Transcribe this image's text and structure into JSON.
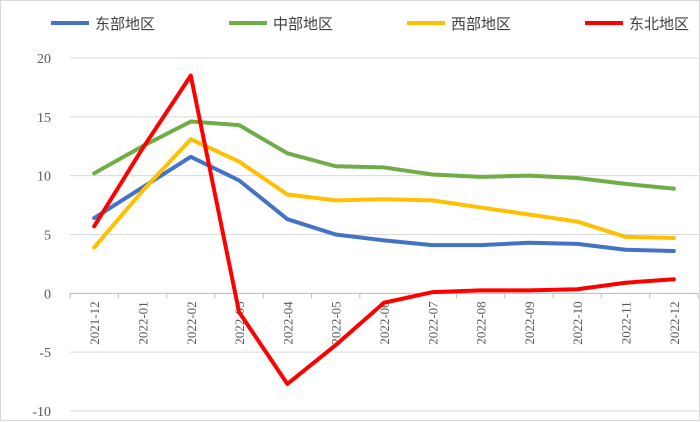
{
  "chart_data": {
    "type": "line",
    "title": "",
    "xlabel": "",
    "ylabel": "",
    "ylim": [
      -10,
      20
    ],
    "yticks": [
      -10,
      -5,
      0,
      5,
      10,
      15,
      20
    ],
    "grid": true,
    "legend_placement": "top",
    "categories": [
      "2021-12",
      "2022-01",
      "2022-02",
      "2022-03",
      "2022-04",
      "2022-05",
      "2022-06",
      "2022-07",
      "2022-08",
      "2022-09",
      "2022-10",
      "2022-11",
      "2022-12"
    ],
    "series": [
      {
        "name": "东部地区",
        "color": "#4472C4",
        "values": [
          6.4,
          9.0,
          11.6,
          9.6,
          6.3,
          5.0,
          4.5,
          4.1,
          4.1,
          4.3,
          4.2,
          3.7,
          3.6
        ]
      },
      {
        "name": "中部地区",
        "color": "#70AD47",
        "values": [
          10.2,
          12.5,
          14.6,
          14.3,
          11.9,
          10.8,
          10.7,
          10.1,
          9.9,
          10.0,
          9.8,
          9.3,
          8.9
        ]
      },
      {
        "name": "西部地区",
        "color": "#FFC000",
        "values": [
          3.9,
          8.7,
          13.1,
          11.2,
          8.4,
          7.9,
          8.0,
          7.9,
          7.3,
          6.7,
          6.1,
          4.8,
          4.7
        ]
      },
      {
        "name": "东北地区",
        "color": "#FF0000",
        "values": [
          5.7,
          12.3,
          18.5,
          -1.6,
          -7.7,
          -4.4,
          -0.8,
          0.1,
          0.25,
          0.25,
          0.35,
          0.9,
          1.2
        ]
      }
    ]
  }
}
